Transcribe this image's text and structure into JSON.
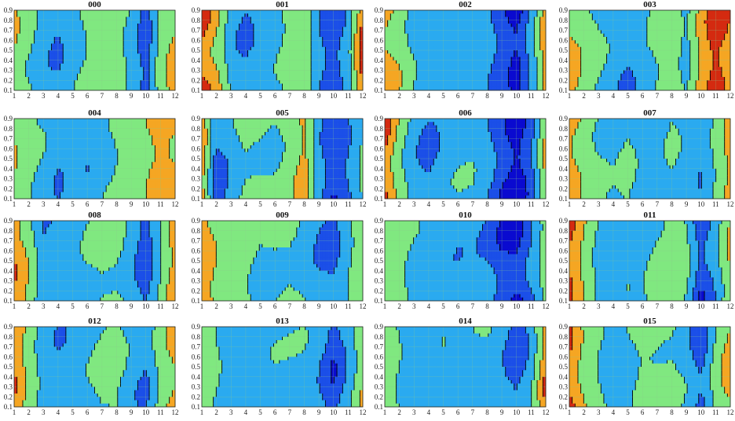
{
  "chart_data": {
    "type": "contour",
    "x_ticks": [
      "1",
      "2",
      "3",
      "4",
      "5",
      "6",
      "7",
      "8",
      "9",
      "10",
      "11",
      "12"
    ],
    "y_ticks": [
      "0.1",
      "0.2",
      "0.3",
      "0.4",
      "0.5",
      "0.6",
      "0.7",
      "0.8",
      "0.9"
    ],
    "xlim": [
      1,
      12
    ],
    "ylim": [
      0.1,
      0.9
    ],
    "grid": true,
    "contour_levels": [
      -0.8,
      -0.4,
      0,
      0.4,
      0.8
    ],
    "level_colors": {
      "below_-0.8": "#0a0ad0",
      "-0.8_to_-0.4": "#1b4fe8",
      "-0.4_to_0": "#2aaaf0",
      "0_to_0.4": "#80e880",
      "0.4_to_0.8": "#f5a623",
      "above_0.8": "#d42a10"
    },
    "contour_line_color": "#000000",
    "panels": [
      {
        "title": "000",
        "profile": [
          0.35,
          0.1,
          -0.2,
          -0.35,
          -0.15,
          0.05,
          0.15,
          0.15,
          -0.1,
          -0.55,
          0.2,
          0.55
        ]
      },
      {
        "title": "001",
        "profile": [
          0.95,
          0.5,
          -0.2,
          -0.4,
          -0.25,
          -0.1,
          0.1,
          0.3,
          -0.3,
          -0.6,
          -0.2,
          0.9
        ]
      },
      {
        "title": "002",
        "profile": [
          0.6,
          0.3,
          -0.1,
          -0.3,
          -0.2,
          -0.1,
          -0.05,
          -0.25,
          -0.55,
          -0.9,
          -0.3,
          0.6
        ]
      },
      {
        "title": "003",
        "profile": [
          0.55,
          0.2,
          0.0,
          -0.2,
          -0.35,
          -0.1,
          0.1,
          0.25,
          -0.1,
          0.5,
          0.95,
          0.6
        ]
      },
      {
        "title": "004",
        "profile": [
          0.3,
          0.1,
          -0.1,
          -0.3,
          -0.15,
          -0.25,
          -0.1,
          0.05,
          0.1,
          0.3,
          0.55,
          0.45
        ]
      },
      {
        "title": "005",
        "profile": [
          0.6,
          -0.55,
          -0.2,
          0.1,
          0.05,
          0.0,
          0.15,
          0.5,
          -0.3,
          -0.75,
          -0.4,
          0.1
        ]
      },
      {
        "title": "006",
        "profile": [
          0.85,
          0.2,
          -0.2,
          -0.4,
          -0.2,
          -0.1,
          -0.1,
          -0.3,
          -0.7,
          -0.95,
          -0.5,
          0.5
        ]
      },
      {
        "title": "007",
        "profile": [
          0.6,
          0.3,
          0.05,
          -0.1,
          0.05,
          -0.25,
          -0.2,
          0.0,
          -0.1,
          -0.3,
          0.1,
          0.55
        ]
      },
      {
        "title": "008",
        "profile": [
          0.8,
          0.3,
          -0.3,
          -0.2,
          -0.25,
          -0.05,
          0.1,
          0.1,
          -0.15,
          -0.6,
          0.0,
          0.6
        ]
      },
      {
        "title": "009",
        "profile": [
          0.7,
          0.3,
          0.1,
          0.1,
          -0.1,
          0.0,
          0.05,
          -0.1,
          -0.35,
          -0.5,
          -0.1,
          0.3
        ]
      },
      {
        "title": "010",
        "profile": [
          0.3,
          0.1,
          -0.1,
          -0.2,
          -0.2,
          -0.25,
          -0.2,
          -0.35,
          -0.75,
          -0.9,
          -0.4,
          0.2
        ]
      },
      {
        "title": "011",
        "profile": [
          0.8,
          0.3,
          -0.1,
          -0.15,
          -0.05,
          -0.1,
          0.1,
          0.15,
          0.05,
          -0.7,
          -0.2,
          0.45
        ]
      },
      {
        "title": "012",
        "profile": [
          0.75,
          0.25,
          -0.15,
          -0.3,
          -0.2,
          -0.1,
          0.05,
          0.1,
          -0.2,
          -0.35,
          0.2,
          0.55
        ]
      },
      {
        "title": "013",
        "profile": [
          0.3,
          0.05,
          -0.2,
          -0.25,
          -0.15,
          -0.1,
          -0.1,
          -0.1,
          -0.25,
          -0.65,
          -0.2,
          0.35
        ]
      },
      {
        "title": "014",
        "profile": [
          0.35,
          0.0,
          -0.2,
          -0.15,
          -0.1,
          -0.2,
          -0.15,
          -0.05,
          -0.2,
          -0.55,
          -0.2,
          0.7
        ]
      },
      {
        "title": "015",
        "profile": [
          0.85,
          0.3,
          0.0,
          -0.2,
          -0.1,
          0.1,
          0.1,
          0.1,
          -0.1,
          -0.6,
          0.1,
          0.5
        ]
      }
    ]
  }
}
